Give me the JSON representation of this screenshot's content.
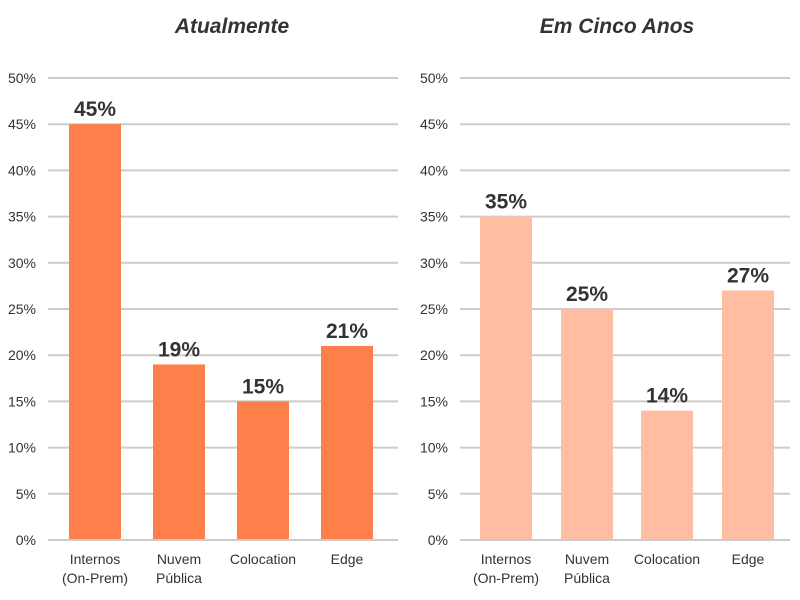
{
  "chart_data": [
    {
      "type": "bar",
      "title": "Atualmente",
      "categories": [
        [
          "Internos",
          "(On-Prem)"
        ],
        [
          "Nuvem",
          "Pública"
        ],
        [
          "Colocation"
        ],
        [
          "Edge"
        ]
      ],
      "values": [
        45,
        19,
        15,
        21
      ],
      "data_labels": [
        "45%",
        "19%",
        "15%",
        "21%"
      ],
      "ylim": [
        0,
        50
      ],
      "yticks": [
        "0%",
        "5%",
        "10%",
        "15%",
        "20%",
        "25%",
        "30%",
        "35%",
        "40%",
        "45%",
        "50%"
      ],
      "grid": true,
      "color": "#ff7f4b"
    },
    {
      "type": "bar",
      "title": "Em Cinco Anos",
      "categories": [
        [
          "Internos",
          "(On-Prem)"
        ],
        [
          "Nuvem",
          "Pública"
        ],
        [
          "Colocation"
        ],
        [
          "Edge"
        ]
      ],
      "values": [
        35,
        25,
        14,
        27
      ],
      "data_labels": [
        "35%",
        "25%",
        "14%",
        "27%"
      ],
      "ylim": [
        0,
        50
      ],
      "yticks": [
        "0%",
        "5%",
        "10%",
        "15%",
        "20%",
        "25%",
        "30%",
        "35%",
        "40%",
        "45%",
        "50%"
      ],
      "grid": true,
      "color": "#ffbea2"
    }
  ]
}
